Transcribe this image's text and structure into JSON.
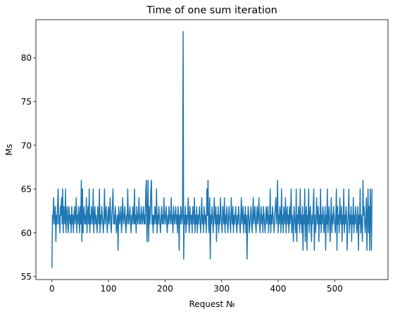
{
  "chart_data": {
    "type": "line",
    "title": "Time of one sum iteration",
    "xlabel": "Request №",
    "ylabel": "Ms",
    "xlim": [
      -28.3,
      594.3
    ],
    "ylim": [
      54.65,
      84.35
    ],
    "xticks": [
      0,
      100,
      200,
      300,
      400,
      500
    ],
    "yticks": [
      55,
      60,
      65,
      70,
      75,
      80
    ],
    "grid": false,
    "x": [
      0,
      1,
      2,
      3,
      4,
      5,
      6,
      7,
      8,
      9,
      10,
      11,
      12,
      13,
      14,
      15,
      16,
      17,
      18,
      19,
      20,
      21,
      22,
      23,
      24,
      25,
      26,
      27,
      28,
      29,
      30,
      31,
      32,
      33,
      34,
      35,
      36,
      37,
      38,
      39,
      40,
      41,
      42,
      43,
      44,
      45,
      46,
      47,
      48,
      49,
      50,
      51,
      52,
      53,
      54,
      55,
      56,
      57,
      58,
      59,
      60,
      61,
      62,
      63,
      64,
      65,
      66,
      67,
      68,
      69,
      70,
      71,
      72,
      73,
      74,
      75,
      76,
      77,
      78,
      79,
      80,
      81,
      82,
      83,
      84,
      85,
      86,
      87,
      88,
      89,
      90,
      91,
      92,
      93,
      94,
      95,
      96,
      97,
      98,
      99,
      100,
      101,
      102,
      103,
      104,
      105,
      106,
      107,
      108,
      109,
      110,
      111,
      112,
      113,
      114,
      115,
      116,
      117,
      118,
      119,
      120,
      121,
      122,
      123,
      124,
      125,
      126,
      127,
      128,
      129,
      130,
      131,
      132,
      133,
      134,
      135,
      136,
      137,
      138,
      139,
      140,
      141,
      142,
      143,
      144,
      145,
      146,
      147,
      148,
      149,
      150,
      151,
      152,
      153,
      154,
      155,
      156,
      157,
      158,
      159,
      160,
      161,
      162,
      163,
      164,
      165,
      166,
      167,
      168,
      169,
      170,
      171,
      172,
      173,
      174,
      175,
      176,
      177,
      178,
      179,
      180,
      181,
      182,
      183,
      184,
      185,
      186,
      187,
      188,
      189,
      190,
      191,
      192,
      193,
      194,
      195,
      196,
      197,
      198,
      199,
      200,
      201,
      202,
      203,
      204,
      205,
      206,
      207,
      208,
      209,
      210,
      211,
      212,
      213,
      214,
      215,
      216,
      217,
      218,
      219,
      220,
      221,
      222,
      223,
      224,
      225,
      226,
      227,
      228,
      229,
      230,
      231,
      232,
      233,
      234,
      235,
      236,
      237,
      238,
      239,
      240,
      241,
      242,
      243,
      244,
      245,
      246,
      247,
      248,
      249,
      250,
      251,
      252,
      253,
      254,
      255,
      256,
      257,
      258,
      259,
      260,
      261,
      262,
      263,
      264,
      265,
      266,
      267,
      268,
      269,
      270,
      271,
      272,
      273,
      274,
      275,
      276,
      277,
      278,
      279,
      280,
      281,
      282,
      283,
      284,
      285,
      286,
      287,
      288,
      289,
      290,
      291,
      292,
      293,
      294,
      295,
      296,
      297,
      298,
      299,
      300,
      301,
      302,
      303,
      304,
      305,
      306,
      307,
      308,
      309,
      310,
      311,
      312,
      313,
      314,
      315,
      316,
      317,
      318,
      319,
      320,
      321,
      322,
      323,
      324,
      325,
      326,
      327,
      328,
      329,
      330,
      331,
      332,
      333,
      334,
      335,
      336,
      337,
      338,
      339,
      340,
      341,
      342,
      343,
      344,
      345,
      346,
      347,
      348,
      349,
      350,
      351,
      352,
      353,
      354,
      355,
      356,
      357,
      358,
      359,
      360,
      361,
      362,
      363,
      364,
      365,
      366,
      367,
      368,
      369,
      370,
      371,
      372,
      373,
      374,
      375,
      376,
      377,
      378,
      379,
      380,
      381,
      382,
      383,
      384,
      385,
      386,
      387,
      388,
      389,
      390,
      391,
      392,
      393,
      394,
      395,
      396,
      397,
      398,
      399,
      400,
      401,
      402,
      403,
      404,
      405,
      406,
      407,
      408,
      409,
      410,
      411,
      412,
      413,
      414,
      415,
      416,
      417,
      418,
      419,
      420,
      421,
      422,
      423,
      424,
      425,
      426,
      427,
      428,
      429,
      430,
      431,
      432,
      433,
      434,
      435,
      436,
      437,
      438,
      439,
      440,
      441,
      442,
      443,
      444,
      445,
      446,
      447,
      448,
      449,
      450,
      451,
      452,
      453,
      454,
      455,
      456,
      457,
      458,
      459,
      460,
      461,
      462,
      463,
      464,
      465,
      466,
      467,
      468,
      469,
      470,
      471,
      472,
      473,
      474,
      475,
      476,
      477,
      478,
      479,
      480,
      481,
      482,
      483,
      484,
      485,
      486,
      487,
      488,
      489,
      490,
      491,
      492,
      493,
      494,
      495,
      496,
      497,
      498,
      499,
      500,
      501,
      502,
      503,
      504,
      505,
      506,
      507,
      508,
      509,
      510,
      511,
      512,
      513,
      514,
      515,
      516,
      517,
      518,
      519,
      520,
      521,
      522,
      523,
      524,
      525,
      526,
      527,
      528,
      529,
      530,
      531,
      532,
      533,
      534,
      535,
      536,
      537,
      538,
      539,
      540,
      541,
      542,
      543,
      544,
      545,
      546,
      547,
      548,
      549,
      550,
      551,
      552,
      553,
      554,
      555,
      556,
      557,
      558,
      559,
      560,
      561,
      562,
      563,
      564,
      565,
      566
    ],
    "series": [
      {
        "color": "#1f77b4",
        "values": [
          56,
          62,
          61,
          64,
          62,
          61,
          63,
          59,
          62,
          61,
          63,
          65,
          61,
          62,
          60,
          63,
          62,
          64,
          61,
          65,
          60,
          63,
          62,
          61,
          65,
          60,
          62,
          63,
          61,
          60,
          63,
          62,
          61,
          62,
          60,
          63,
          61,
          62,
          60,
          62,
          63,
          61,
          62,
          64,
          60,
          62,
          61,
          63,
          62,
          60,
          63,
          61,
          66,
          59,
          65,
          60,
          62,
          63,
          61,
          62,
          61,
          64,
          60,
          62,
          63,
          61,
          65,
          60,
          62,
          61,
          63,
          62,
          61,
          65,
          60,
          62,
          63,
          61,
          62,
          61,
          60,
          63,
          62,
          61,
          65,
          60,
          62,
          61,
          63,
          62,
          61,
          60,
          62,
          65,
          61,
          62,
          63,
          61,
          60,
          62,
          63,
          61,
          62,
          64,
          61,
          60,
          62,
          63,
          65,
          61,
          62,
          61,
          63,
          62,
          60,
          61,
          62,
          58,
          63,
          62,
          61,
          62,
          63,
          60,
          61,
          64,
          62,
          61,
          62,
          63,
          61,
          60,
          62,
          61,
          65,
          62,
          61,
          62,
          63,
          61,
          60,
          62,
          61,
          63,
          62,
          61,
          65,
          61,
          62,
          60,
          63,
          62,
          61,
          62,
          64,
          61,
          62,
          61,
          63,
          62,
          61,
          62,
          63,
          61,
          62,
          61,
          65,
          66,
          59,
          62,
          66,
          59,
          63,
          61,
          62,
          65,
          66,
          61,
          62,
          60,
          62,
          61,
          63,
          62,
          61,
          65,
          60,
          62,
          61,
          63,
          62,
          61,
          60,
          62,
          63,
          61,
          62,
          61,
          64,
          62,
          61,
          62,
          63,
          61,
          60,
          62,
          61,
          63,
          62,
          61,
          62,
          64,
          61,
          62,
          60,
          63,
          62,
          61,
          62,
          63,
          61,
          62,
          60,
          63,
          62,
          58,
          62,
          61,
          63,
          62,
          61,
          62,
          83,
          57,
          62,
          61,
          63,
          60,
          62,
          61,
          62,
          64,
          61,
          60,
          63,
          62,
          61,
          62,
          60,
          63,
          62,
          61,
          64,
          60,
          62,
          61,
          63,
          60,
          62,
          61,
          62,
          63,
          61,
          60,
          62,
          64,
          61,
          62,
          60,
          63,
          62,
          61,
          62,
          60,
          65,
          62,
          66,
          61,
          60,
          64,
          57,
          62,
          61,
          63,
          62,
          60,
          61,
          64,
          62,
          61,
          63,
          59,
          62,
          61,
          63,
          60,
          62,
          61,
          64,
          62,
          61,
          60,
          63,
          62,
          61,
          64,
          60,
          62,
          61,
          63,
          62,
          60,
          61,
          63,
          62,
          61,
          60,
          64,
          62,
          61,
          63,
          60,
          62,
          61,
          62,
          63,
          61,
          60,
          62,
          61,
          63,
          62,
          61,
          60,
          62,
          64,
          61,
          62,
          63,
          60,
          62,
          61,
          63,
          60,
          62,
          57,
          61,
          63,
          62,
          60,
          61,
          62,
          63,
          61,
          60,
          62,
          64,
          61,
          62,
          63,
          61,
          60,
          62,
          63,
          61,
          62,
          64,
          61,
          60,
          62,
          63,
          61,
          62,
          60,
          63,
          62,
          61,
          60,
          62,
          63,
          61,
          62,
          63,
          60,
          62,
          61,
          65,
          60,
          62,
          61,
          63,
          62,
          61,
          60,
          62,
          63,
          64,
          61,
          62,
          66,
          60,
          62,
          61,
          63,
          62,
          60,
          65,
          61,
          62,
          60,
          63,
          62,
          61,
          64,
          60,
          62,
          63,
          61,
          62,
          60,
          63,
          61,
          62,
          65,
          60,
          62,
          61,
          59,
          63,
          62,
          61,
          60,
          65,
          59,
          62,
          61,
          63,
          62,
          60,
          65,
          61,
          62,
          60,
          63,
          58,
          62,
          61,
          65,
          59,
          62,
          63,
          58,
          62,
          61,
          65,
          60,
          62,
          63,
          61,
          59,
          62,
          61,
          63,
          65,
          58,
          62,
          60,
          61,
          64,
          62,
          61,
          63,
          59,
          62,
          61,
          65,
          60,
          62,
          61,
          63,
          62,
          60,
          61,
          63,
          58,
          62,
          61,
          65,
          60,
          62,
          63,
          61,
          59,
          62,
          64,
          60,
          62,
          61,
          63,
          62,
          61,
          60,
          62,
          65,
          58,
          63,
          61,
          62,
          60,
          64,
          62,
          61,
          63,
          59,
          62,
          61,
          65,
          60,
          62,
          61,
          63,
          62,
          58,
          61,
          62,
          65,
          60,
          62,
          61,
          63,
          59,
          62,
          61,
          64,
          60,
          62,
          61,
          63,
          62,
          60,
          61,
          63,
          58,
          62,
          61,
          65,
          60,
          62,
          61,
          59,
          66,
          62,
          63,
          61,
          60,
          62,
          64,
          58,
          62,
          65,
          60,
          63,
          58,
          65,
          62,
          58,
          65
        ]
      }
    ]
  }
}
